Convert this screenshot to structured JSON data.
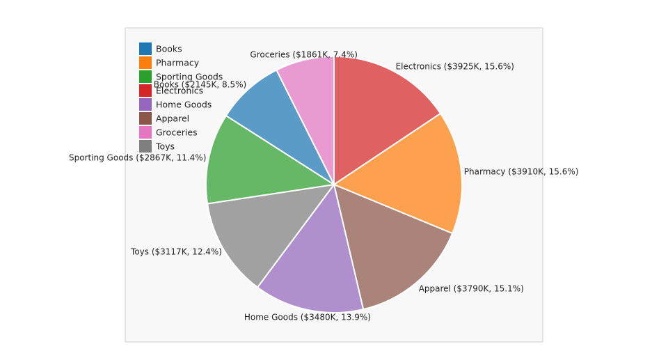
{
  "chart_data": {
    "type": "pie",
    "title": "",
    "legend_position": "top-left",
    "start_angle_deg": 90,
    "direction": "clockwise",
    "slices": [
      {
        "name": "Electronics",
        "value": 3925,
        "percent": 15.6,
        "label": "Electronics ($3925K, 15.6%)",
        "color": "#d62728"
      },
      {
        "name": "Pharmacy",
        "value": 3910,
        "percent": 15.6,
        "label": "Pharmacy ($3910K, 15.6%)",
        "color": "#ff7f0e"
      },
      {
        "name": "Apparel",
        "value": 3790,
        "percent": 15.1,
        "label": "Apparel ($3790K, 15.1%)",
        "color": "#8c564b"
      },
      {
        "name": "Home Goods",
        "value": 3480,
        "percent": 13.9,
        "label": "Home Goods ($3480K, 13.9%)",
        "color": "#9467bd"
      },
      {
        "name": "Toys",
        "value": 3117,
        "percent": 12.4,
        "label": "Toys ($3117K, 12.4%)",
        "color": "#7f7f7f"
      },
      {
        "name": "Sporting Goods",
        "value": 2867,
        "percent": 11.4,
        "label": "Sporting Goods ($2867K, 11.4%)",
        "color": "#2ca02c"
      },
      {
        "name": "Books",
        "value": 2145,
        "percent": 8.5,
        "label": "Books ($2145K, 8.5%)",
        "color": "#1f77b4"
      },
      {
        "name": "Groceries",
        "value": 1861,
        "percent": 7.4,
        "label": "Groceries ($1861K, 7.4%)",
        "color": "#e377c2"
      }
    ],
    "legend": [
      {
        "name": "Books",
        "color": "#1f77b4"
      },
      {
        "name": "Pharmacy",
        "color": "#ff7f0e"
      },
      {
        "name": "Sporting Goods",
        "color": "#2ca02c"
      },
      {
        "name": "Electronics",
        "color": "#d62728"
      },
      {
        "name": "Home Goods",
        "color": "#9467bd"
      },
      {
        "name": "Apparel",
        "color": "#8c564b"
      },
      {
        "name": "Groceries",
        "color": "#e377c2"
      },
      {
        "name": "Toys",
        "color": "#7f7f7f"
      }
    ]
  }
}
